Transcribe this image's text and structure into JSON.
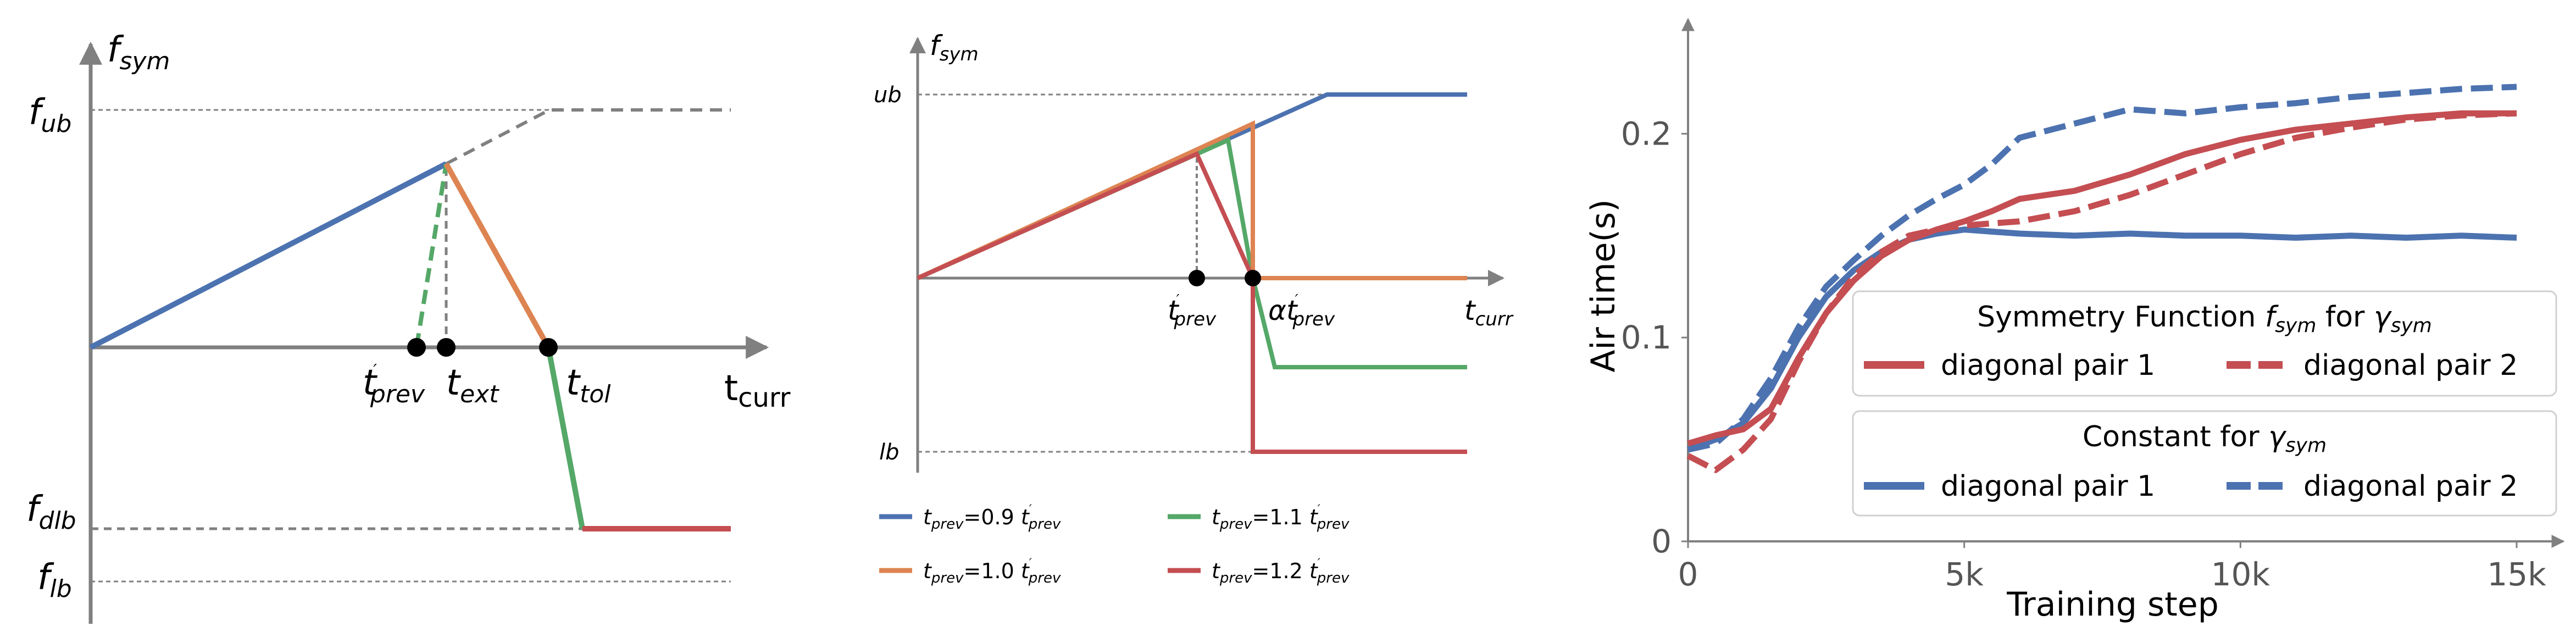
{
  "colors": {
    "blue": "#4c72b0",
    "orange": "#dd8452",
    "green": "#55a868",
    "red": "#c44e52",
    "axis": "#808080"
  },
  "chart_data": [
    {
      "type": "line",
      "panel": "left",
      "title": "",
      "labels": {
        "y_axis": {
          "base": "f",
          "sub": "sym"
        },
        "ub": {
          "base": "f",
          "sub": "ub"
        },
        "dlb": {
          "base": "f",
          "sub": "dlb"
        },
        "lb": {
          "base": "f",
          "sub": "lb"
        },
        "x_axis": {
          "base": "t",
          "sub": "curr"
        },
        "t_prev": {
          "base": "t",
          "sub": "prev",
          "sup": "′"
        },
        "t_ext": {
          "base": "t",
          "sub": "ext"
        },
        "t_tol": {
          "base": "t",
          "sub": "tol"
        }
      },
      "x_marks": {
        "t_prev": 0.6,
        "t_ext": 0.66,
        "t_tol": 0.85
      },
      "levels": {
        "ub": 1.0,
        "peak": 0.78,
        "zero": 0.0,
        "dlb": -0.78,
        "lb": -1.0
      },
      "series": [
        {
          "color": "blue",
          "style": "solid",
          "points": [
            [
              0,
              0
            ],
            [
              0.66,
              0.78
            ]
          ]
        },
        {
          "color": "axis",
          "style": "dashed",
          "points": [
            [
              0.66,
              0.78
            ],
            [
              0.85,
              1.0
            ],
            [
              1.18,
              1.0
            ]
          ]
        },
        {
          "color": "green",
          "style": "dashed",
          "points": [
            [
              0.6,
              0
            ],
            [
              0.66,
              0.78
            ]
          ]
        },
        {
          "color": "orange",
          "style": "solid",
          "points": [
            [
              0.66,
              0.78
            ],
            [
              0.85,
              0
            ]
          ]
        },
        {
          "color": "green",
          "style": "solid",
          "points": [
            [
              0.85,
              0
            ],
            [
              0.91,
              -0.78
            ]
          ]
        },
        {
          "color": "red",
          "style": "solid",
          "points": [
            [
              0.91,
              -0.78
            ],
            [
              1.18,
              -0.78
            ]
          ]
        }
      ],
      "guides": [
        {
          "style": "dashed",
          "points": [
            [
              0.66,
              0
            ],
            [
              0.66,
              0.78
            ]
          ]
        },
        {
          "style": "dashed",
          "points": [
            [
              0,
              1.0
            ],
            [
              0.85,
              1.0
            ]
          ]
        },
        {
          "style": "dashed",
          "points": [
            [
              0,
              -0.78
            ],
            [
              0.91,
              -0.78
            ]
          ]
        },
        {
          "style": "dashed",
          "points": [
            [
              0,
              -1.0
            ],
            [
              1.18,
              -1.0
            ]
          ]
        }
      ]
    },
    {
      "type": "line",
      "panel": "middle",
      "title": "",
      "labels": {
        "y_axis": {
          "base": "f",
          "sub": "sym"
        },
        "ub": {
          "base": "ub"
        },
        "lb": {
          "base": "lb"
        },
        "x_axis": {
          "base": "t",
          "sub": "curr"
        },
        "t_prev": {
          "base": "t",
          "sub": "prev",
          "sup": "′"
        },
        "alpha_t_prev": {
          "base": "αt",
          "sub": "prev",
          "sup": "′"
        }
      },
      "levels": {
        "ub": 1.0,
        "peak": 0.7,
        "zero": 0.0,
        "lb": -1.0
      },
      "series": [
        {
          "name": "t_prev=0.9 t′_prev",
          "color": "blue",
          "points": [
            [
              0,
              0
            ],
            [
              1.45,
              1.0
            ],
            [
              2.0,
              1.0
            ]
          ]
        },
        {
          "name": "t_prev=1.0 t′_prev",
          "color": "orange",
          "points": [
            [
              0,
              0
            ],
            [
              1.2,
              0.86
            ],
            [
              1.2,
              0
            ],
            [
              2.0,
              0
            ]
          ]
        },
        {
          "name": "t_prev=1.1 t′_prev",
          "color": "green",
          "points": [
            [
              0,
              0
            ],
            [
              1.09,
              0.78
            ],
            [
              1.2,
              0
            ],
            [
              1.28,
              -0.5
            ],
            [
              2.0,
              -0.5
            ]
          ]
        },
        {
          "name": "t_prev=1.2 t′_prev",
          "color": "red",
          "points": [
            [
              0,
              0
            ],
            [
              1.0,
              0.72
            ],
            [
              1.2,
              0
            ],
            [
              1.2,
              -1.0
            ],
            [
              2.0,
              -1.0
            ]
          ]
        }
      ],
      "x_marks": {
        "t_prev": 1.0,
        "alpha_t_prev": 1.2
      },
      "legend": [
        {
          "color": "blue",
          "base": "t",
          "sub": "prev",
          "mid": "=0.9 ",
          "base2": "t",
          "sub2": "prev",
          "sup2": "′"
        },
        {
          "color": "green",
          "base": "t",
          "sub": "prev",
          "mid": "=1.1 ",
          "base2": "t",
          "sub2": "prev",
          "sup2": "′"
        },
        {
          "color": "orange",
          "base": "t",
          "sub": "prev",
          "mid": "=1.0 ",
          "base2": "t",
          "sub2": "prev",
          "sup2": "′"
        },
        {
          "color": "red",
          "base": "t",
          "sub": "prev",
          "mid": "=1.2 ",
          "base2": "t",
          "sub2": "prev",
          "sup2": "′"
        }
      ]
    },
    {
      "type": "line",
      "panel": "right",
      "title": "",
      "xlabel": "Training step",
      "ylabel": "Air time(s)",
      "xlim": [
        0,
        15000
      ],
      "ylim": [
        0,
        0.24
      ],
      "xticks": [
        {
          "v": 0,
          "label": "0"
        },
        {
          "v": 5000,
          "label": "5k"
        },
        {
          "v": 10000,
          "label": "10k"
        },
        {
          "v": 15000,
          "label": "15k"
        }
      ],
      "yticks": [
        {
          "v": 0,
          "label": "0"
        },
        {
          "v": 0.1,
          "label": "0.1"
        },
        {
          "v": 0.2,
          "label": "0.2"
        }
      ],
      "legend_groups": [
        {
          "title_pre": "Symmetry Function ",
          "title_base": "f",
          "title_sub": "sym",
          "title_mid": " for ",
          "title_base2": "γ",
          "title_sub2": "sym",
          "entries": [
            {
              "label": "diagonal pair 1",
              "color": "red",
              "style": "solid"
            },
            {
              "label": "diagonal pair 2",
              "color": "red",
              "style": "dashed"
            }
          ]
        },
        {
          "title_pre": "Constant for ",
          "title_base": "γ",
          "title_sub": "sym",
          "entries": [
            {
              "label": "diagonal pair 1",
              "color": "blue",
              "style": "solid"
            },
            {
              "label": "diagonal pair 2",
              "color": "blue",
              "style": "dashed"
            }
          ]
        }
      ],
      "series": [
        {
          "name": "Constant for γsym diagonal pair 1",
          "color": "blue",
          "style": "solid",
          "x": [
            0,
            500,
            1000,
            1500,
            2000,
            2500,
            3000,
            3500,
            4000,
            4500,
            5000,
            5500,
            6000,
            7000,
            8000,
            9000,
            10000,
            11000,
            12000,
            13000,
            14000,
            15000
          ],
          "y": [
            0.045,
            0.05,
            0.058,
            0.075,
            0.1,
            0.12,
            0.133,
            0.142,
            0.148,
            0.151,
            0.153,
            0.152,
            0.151,
            0.15,
            0.151,
            0.15,
            0.15,
            0.149,
            0.15,
            0.149,
            0.15,
            0.149
          ]
        },
        {
          "name": "Constant for γsym diagonal pair 2",
          "color": "blue",
          "style": "dashed",
          "x": [
            0,
            500,
            1000,
            1500,
            2000,
            2500,
            3000,
            3500,
            4000,
            4500,
            5000,
            5500,
            6000,
            7000,
            8000,
            9000,
            10000,
            11000,
            12000,
            13000,
            14000,
            15000
          ],
          "y": [
            0.045,
            0.048,
            0.06,
            0.08,
            0.105,
            0.125,
            0.138,
            0.15,
            0.16,
            0.168,
            0.175,
            0.185,
            0.198,
            0.205,
            0.212,
            0.21,
            0.213,
            0.215,
            0.218,
            0.22,
            0.222,
            0.223
          ]
        },
        {
          "name": "Symmetry Function fsym for γsym diagonal pair 1",
          "color": "red",
          "style": "solid",
          "x": [
            0,
            500,
            1000,
            1500,
            2000,
            2500,
            3000,
            3500,
            4000,
            4500,
            5000,
            5500,
            6000,
            7000,
            8000,
            9000,
            10000,
            11000,
            12000,
            13000,
            14000,
            15000
          ],
          "y": [
            0.048,
            0.052,
            0.055,
            0.065,
            0.09,
            0.112,
            0.128,
            0.14,
            0.148,
            0.153,
            0.157,
            0.162,
            0.168,
            0.172,
            0.18,
            0.19,
            0.197,
            0.202,
            0.205,
            0.208,
            0.21,
            0.21
          ]
        },
        {
          "name": "Symmetry Function fsym for γsym diagonal pair 2",
          "color": "red",
          "style": "dashed",
          "x": [
            0,
            500,
            1000,
            1500,
            2000,
            2500,
            3000,
            3500,
            4000,
            4500,
            5000,
            5500,
            6000,
            7000,
            8000,
            9000,
            10000,
            11000,
            12000,
            13000,
            14000,
            15000
          ],
          "y": [
            0.042,
            0.035,
            0.045,
            0.06,
            0.088,
            0.112,
            0.13,
            0.142,
            0.15,
            0.153,
            0.155,
            0.156,
            0.157,
            0.162,
            0.17,
            0.18,
            0.19,
            0.198,
            0.203,
            0.207,
            0.209,
            0.21
          ]
        }
      ]
    }
  ]
}
